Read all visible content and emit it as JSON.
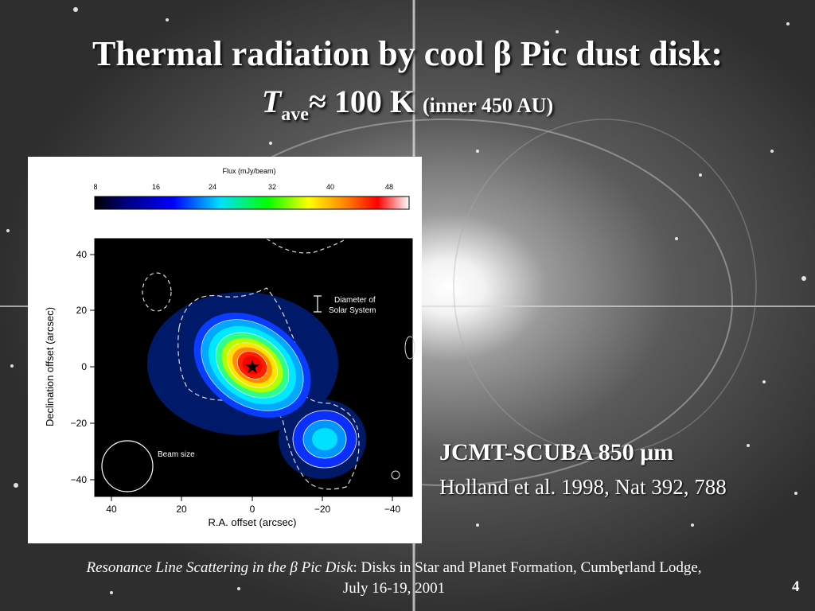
{
  "slide": {
    "title_line1": "Thermal radiation by cool β Pic dust disk:",
    "title_T": "T",
    "title_sub": "ave",
    "title_approx": "≈ 100 K ",
    "title_note": "(inner 450 AU)"
  },
  "figure": {
    "colorbar_title": "Flux (mJy/beam)",
    "colorbar_ticks": [
      "8",
      "16",
      "24",
      "32",
      "40",
      "48"
    ],
    "y_label": "Declination offset (arcsec)",
    "x_label": "R.A. offset (arcsec)",
    "y_ticks": [
      "40",
      "20",
      "0",
      "−20",
      "−40"
    ],
    "x_ticks": [
      "40",
      "20",
      "0",
      "−20",
      "−40"
    ],
    "scale_bar_line1": "Diameter of",
    "scale_bar_line2": "Solar System",
    "beam_label": "Beam size",
    "star_icon": "star-icon"
  },
  "credits": {
    "instrument_prefix": "JCMT-SCUBA  850 ",
    "instrument_unit": "μm",
    "reference": "Holland et al. 1998, Nat 392, 788"
  },
  "footer": {
    "title_prefix": "Resonance Line Scattering in the ",
    "title_beta": "β",
    "title_rest": " Pic Disk",
    "line1_rest": ": Disks in Star and Planet Formation, Cumberland Lodge,",
    "line2": "July 16-19, 2001"
  },
  "page_number": "4",
  "colors": {
    "title": "#ffffff",
    "background": "#3a3a3a"
  }
}
